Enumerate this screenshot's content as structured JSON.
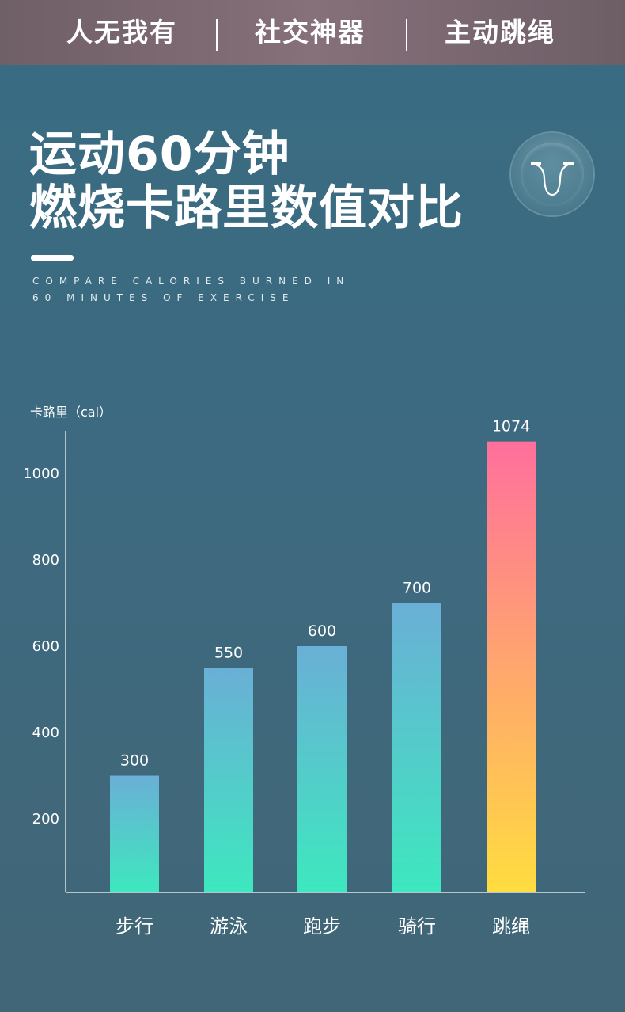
{
  "header": {
    "items": [
      "人无我有",
      "社交神器",
      "主动跳绳"
    ]
  },
  "title": {
    "line1": "运动60分钟",
    "line2": "燃烧卡路里数值对比"
  },
  "subtitle": {
    "line1": "COMPARE CALORIES BURNED IN",
    "line2": "60 MINUTES OF EXERCISE"
  },
  "icon": "jump-rope-icon",
  "chart_data": {
    "type": "bar",
    "unit_label": "卡路里（cal）",
    "categories": [
      "步行",
      "游泳",
      "跑步",
      "骑行",
      "跳绳"
    ],
    "values": [
      300,
      550,
      600,
      700,
      1074
    ],
    "data_labels": [
      "300",
      "550",
      "600",
      "700",
      "1074"
    ],
    "yticks": [
      200,
      400,
      600,
      800,
      1000
    ],
    "ylim": [
      0,
      1150
    ],
    "colors": {
      "normal_top": "#6aafd6",
      "normal_bottom": "#3de8bf",
      "highlight_top": "#ff6f9c",
      "highlight_bottom": "#ffdd3f"
    },
    "highlight_index": 4
  }
}
